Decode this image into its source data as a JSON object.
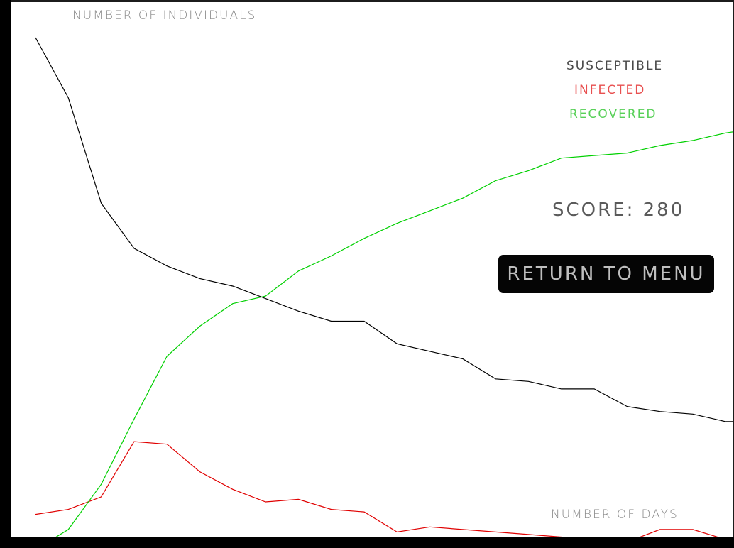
{
  "chart_data": {
    "type": "line",
    "xlabel": "NUMBER OF DAYS",
    "ylabel": "NUMBER OF INDIVIDUALS",
    "grid": false,
    "legend_placement": "top-right",
    "x": [
      0,
      1,
      2,
      3,
      4,
      5,
      6,
      7,
      8,
      9,
      10,
      11,
      12,
      13,
      14,
      15,
      16,
      17,
      18,
      19,
      20,
      21,
      22
    ],
    "series": [
      {
        "name": "SUSCEPTIBLE",
        "color": "#000000",
        "values": [
          100,
          88,
          67,
          58,
          54.5,
          52,
          50.5,
          48,
          45.5,
          43.5,
          43.5,
          39,
          37.5,
          36,
          32,
          31.5,
          30,
          30,
          26.5,
          25.5,
          25,
          23.5,
          23.5
        ]
      },
      {
        "name": "INFECTED",
        "color": "#e00000",
        "values": [
          5,
          6,
          8.5,
          19.5,
          19,
          13.5,
          10,
          7.5,
          8,
          6,
          5.5,
          1.5,
          2.5,
          2,
          1.5,
          1,
          0.5,
          0,
          -0.5,
          2,
          2,
          0,
          0
        ]
      },
      {
        "name": "RECOVERED",
        "color": "#00d000",
        "values": [
          -2,
          2,
          11,
          24,
          36.5,
          42.5,
          47,
          48.5,
          53.5,
          56.5,
          60,
          63,
          65.5,
          68,
          71.5,
          73.5,
          76,
          76.5,
          77,
          78.5,
          79.5,
          81,
          82
        ]
      }
    ]
  },
  "hud": {
    "score_text": "SCORE: 280",
    "menu_button_label": "RETURN TO MENU"
  }
}
